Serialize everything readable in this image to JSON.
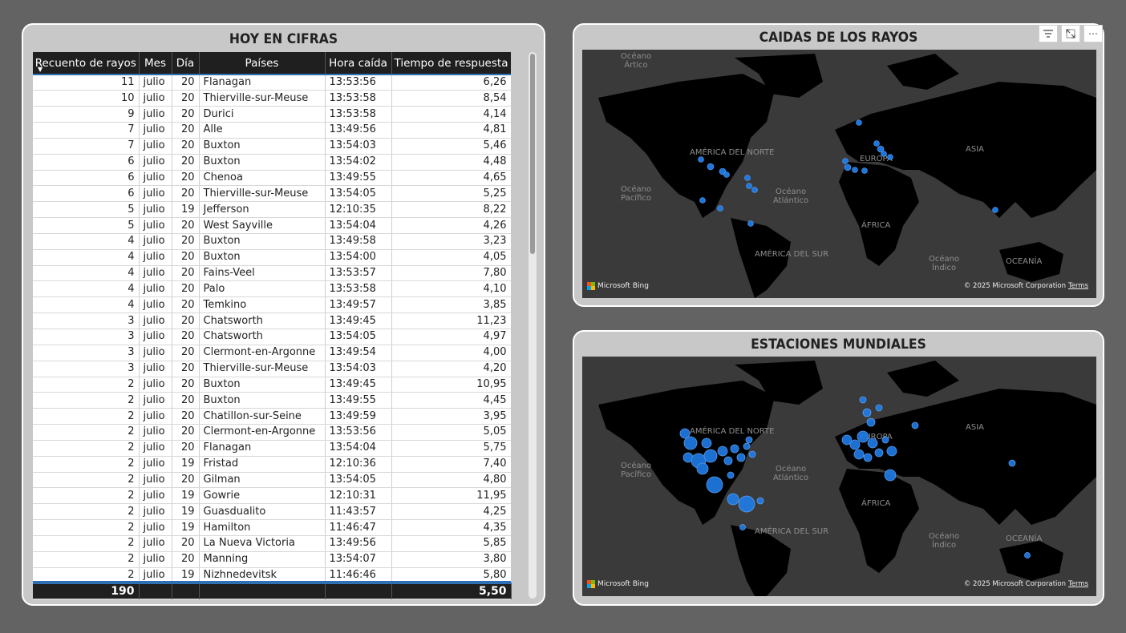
{
  "table_card": {
    "title": "HOY EN CIFRAS",
    "columns": [
      "Recuento de rayos",
      "Mes",
      "Día",
      "Países",
      "Hora caída",
      "Tiempo de respuesta"
    ],
    "rows": [
      [
        "11",
        "julio",
        "20",
        "Flanagan",
        "13:53:56",
        "6,26"
      ],
      [
        "10",
        "julio",
        "20",
        "Thierville-sur-Meuse",
        "13:53:58",
        "8,54"
      ],
      [
        "9",
        "julio",
        "20",
        "Durici",
        "13:53:58",
        "4,14"
      ],
      [
        "7",
        "julio",
        "20",
        "Alle",
        "13:49:56",
        "4,81"
      ],
      [
        "7",
        "julio",
        "20",
        "Buxton",
        "13:54:03",
        "5,46"
      ],
      [
        "6",
        "julio",
        "20",
        "Buxton",
        "13:54:02",
        "4,48"
      ],
      [
        "6",
        "julio",
        "20",
        "Chenoa",
        "13:49:55",
        "4,65"
      ],
      [
        "6",
        "julio",
        "20",
        "Thierville-sur-Meuse",
        "13:54:05",
        "5,25"
      ],
      [
        "5",
        "julio",
        "19",
        "Jefferson",
        "12:10:35",
        "8,22"
      ],
      [
        "5",
        "julio",
        "20",
        "West Sayville",
        "13:54:04",
        "4,26"
      ],
      [
        "4",
        "julio",
        "20",
        "Buxton",
        "13:49:58",
        "3,23"
      ],
      [
        "4",
        "julio",
        "20",
        "Buxton",
        "13:54:00",
        "4,05"
      ],
      [
        "4",
        "julio",
        "20",
        "Fains-Veel",
        "13:53:57",
        "7,80"
      ],
      [
        "4",
        "julio",
        "20",
        "Palo",
        "13:53:58",
        "4,10"
      ],
      [
        "4",
        "julio",
        "20",
        "Temkino",
        "13:49:57",
        "3,85"
      ],
      [
        "3",
        "julio",
        "20",
        "Chatsworth",
        "13:49:45",
        "11,23"
      ],
      [
        "3",
        "julio",
        "20",
        "Chatsworth",
        "13:54:05",
        "4,97"
      ],
      [
        "3",
        "julio",
        "20",
        "Clermont-en-Argonne",
        "13:49:54",
        "4,00"
      ],
      [
        "3",
        "julio",
        "20",
        "Thierville-sur-Meuse",
        "13:54:03",
        "4,20"
      ],
      [
        "2",
        "julio",
        "20",
        "Buxton",
        "13:49:45",
        "10,95"
      ],
      [
        "2",
        "julio",
        "20",
        "Buxton",
        "13:49:55",
        "4,45"
      ],
      [
        "2",
        "julio",
        "20",
        "Chatillon-sur-Seine",
        "13:49:59",
        "3,95"
      ],
      [
        "2",
        "julio",
        "20",
        "Clermont-en-Argonne",
        "13:53:56",
        "5,05"
      ],
      [
        "2",
        "julio",
        "20",
        "Flanagan",
        "13:54:04",
        "5,75"
      ],
      [
        "2",
        "julio",
        "19",
        "Fristad",
        "12:10:36",
        "7,40"
      ],
      [
        "2",
        "julio",
        "20",
        "Gilman",
        "13:54:05",
        "4,80"
      ],
      [
        "2",
        "julio",
        "19",
        "Gowrie",
        "12:10:31",
        "11,95"
      ],
      [
        "2",
        "julio",
        "19",
        "Guasdualito",
        "11:43:57",
        "4,25"
      ],
      [
        "2",
        "julio",
        "19",
        "Hamilton",
        "11:46:47",
        "4,35"
      ],
      [
        "2",
        "julio",
        "20",
        "La Nueva Victoria",
        "13:49:56",
        "5,85"
      ],
      [
        "2",
        "julio",
        "20",
        "Manning",
        "13:54:07",
        "3,80"
      ],
      [
        "2",
        "julio",
        "19",
        "Nizhnedevitsk",
        "11:46:46",
        "5,80"
      ]
    ],
    "totals": [
      "190",
      "",
      "",
      "",
      "",
      "5,50"
    ]
  },
  "map1": {
    "title": "CAIDAS DE LOS RAYOS"
  },
  "map2": {
    "title": "ESTACIONES MUNDIALES"
  },
  "map_labels": {
    "artico": "Océano\nÁrtico",
    "america_norte": "AMÉRICA DEL NORTE",
    "asia": "ASIA",
    "europa": "EUROPA",
    "pacifico": "Océano\nPacífico",
    "atlantico": "Océano\nAtlántico",
    "africa": "ÁFRICA",
    "america_sur": "AMÉRICA DEL SUR",
    "indico": "Océano\nÍndico",
    "oceania": "OCEANÍA"
  },
  "map_footer": {
    "bing": "Microsoft Bing",
    "copyright": "© 2025 Microsoft Corporation",
    "terms": "Terms"
  },
  "colors": {
    "bubble": "#1f7de8",
    "land": "#000000",
    "water": "#3a3a3a"
  },
  "toolbar_icons": [
    "filter-icon",
    "focus-mode-icon",
    "more-options-icon"
  ]
}
